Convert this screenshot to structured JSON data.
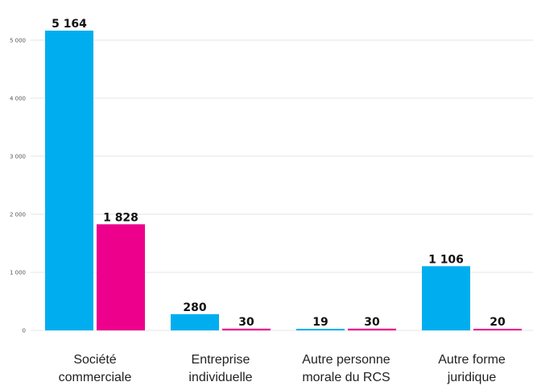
{
  "chart_data": {
    "type": "bar",
    "categories": [
      [
        "Société",
        "commerciale"
      ],
      [
        "Entreprise",
        "individuelle"
      ],
      [
        "Autre personne",
        "morale du RCS"
      ],
      [
        "Autre forme",
        "juridique"
      ]
    ],
    "series": [
      {
        "values": [
          5164,
          280,
          19,
          1106
        ],
        "labels": [
          "5 164",
          "280",
          "19",
          "1 106"
        ],
        "color": "#00AEEF"
      },
      {
        "values": [
          1828,
          30,
          30,
          20
        ],
        "labels": [
          "1 828",
          "30",
          "30",
          "20"
        ],
        "color": "#EC008C"
      }
    ],
    "yticks": [
      0,
      1000,
      2000,
      3000,
      4000,
      5000
    ],
    "ytick_labels": [
      "0",
      "1 000",
      "2 000",
      "3 000",
      "4 000",
      "5 000"
    ],
    "ylim": [
      0,
      5164
    ],
    "grid": true,
    "title": "",
    "xlabel": "",
    "ylabel": ""
  }
}
